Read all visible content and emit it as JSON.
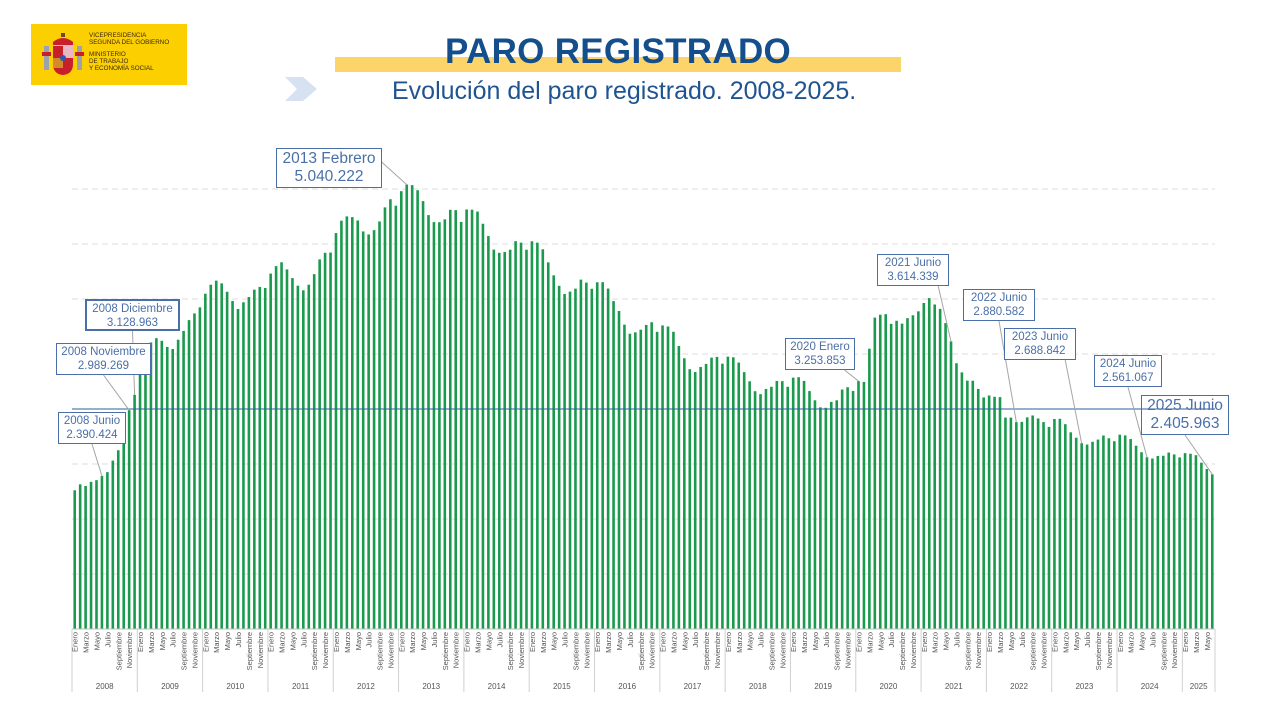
{
  "header": {
    "logo": {
      "lines_top": [
        "VICEPRESIDENCIA",
        "SEGUNDA DEL GOBIERNO"
      ],
      "lines_bottom": [
        "MINISTERIO",
        "DE TRABAJO",
        "Y ECONOMÍA SOCIAL"
      ],
      "background": "#fccf00"
    },
    "title": "PARO REGISTRADO",
    "subtitle": "Evolución del paro registrado. 2008-2025.",
    "title_color": "#144f8c",
    "highlight_color": "#fcd56a",
    "chevron_icon": "chevron-right-icon"
  },
  "chart_data": {
    "type": "bar",
    "title": "Evolución del paro registrado. 2008-2025.",
    "xlabel": "",
    "ylabel": "",
    "ylim": [
      1000000,
      5250000
    ],
    "grid": true,
    "gridline_step": 500000,
    "reference_line": 3000000,
    "bar_color": "#1a9a4c",
    "reference_color": "#2f5f9e",
    "years": [
      "2008",
      "2009",
      "2010",
      "2011",
      "2012",
      "2013",
      "2014",
      "2015",
      "2016",
      "2017",
      "2018",
      "2019",
      "2020",
      "2021",
      "2022",
      "2023",
      "2024",
      "2025"
    ],
    "month_tick_labels": [
      "Enero",
      "Marzo",
      "Mayo",
      "Julio",
      "Septiembre",
      "Noviembre"
    ],
    "month_tick_labels_2025": [
      "Enero",
      "Marzo",
      "Mayo"
    ],
    "values": [
      2261000,
      2315000,
      2300000,
      2338000,
      2353000,
      2390424,
      2426000,
      2531000,
      2625000,
      2818000,
      2989269,
      3128963,
      3327000,
      3482000,
      3605000,
      3644000,
      3620000,
      3564000,
      3545000,
      3630000,
      3710000,
      3808000,
      3869000,
      3924000,
      4048000,
      4130000,
      4167000,
      4142000,
      4066000,
      3982000,
      3909000,
      3970000,
      4018000,
      4085000,
      4110000,
      4100000,
      4231000,
      4299000,
      4334000,
      4269000,
      4190000,
      4121000,
      4079000,
      4130000,
      4226000,
      4360000,
      4420000,
      4422000,
      4599000,
      4712000,
      4751000,
      4744000,
      4714000,
      4614000,
      4587000,
      4626000,
      4705000,
      4833000,
      4907000,
      4848000,
      4980000,
      5040222,
      5035000,
      4989000,
      4890000,
      4763000,
      4699000,
      4698000,
      4724000,
      4811000,
      4808000,
      4701000,
      4814000,
      4812000,
      4795000,
      4684000,
      4572000,
      4449000,
      4420000,
      4427000,
      4448000,
      4526000,
      4512000,
      4448000,
      4525000,
      4512000,
      4452000,
      4333000,
      4215000,
      4120000,
      4046000,
      4067000,
      4094000,
      4176000,
      4149000,
      4093000,
      4152000,
      4153000,
      4095000,
      3981000,
      3891000,
      3767000,
      3684000,
      3697000,
      3721000,
      3764000,
      3789000,
      3702000,
      3760000,
      3750000,
      3702000,
      3573000,
      3461000,
      3362000,
      3336000,
      3382000,
      3410000,
      3467000,
      3474000,
      3412000,
      3476000,
      3470000,
      3422000,
      3335000,
      3252000,
      3162000,
      3135000,
      3182000,
      3202000,
      3255000,
      3253000,
      3202000,
      3285000,
      3289000,
      3255000,
      3163000,
      3079000,
      3015000,
      3011000,
      3065000,
      3079000,
      3177000,
      3198000,
      3164000,
      3253853,
      3246000,
      3548000,
      3831000,
      3857000,
      3862000,
      3774000,
      3802000,
      3776000,
      3826000,
      3852000,
      3888000,
      3964000,
      4008000,
      3950000,
      3910000,
      3781000,
      3614339,
      3416000,
      3333000,
      3258000,
      3257000,
      3182000,
      3105000,
      3123000,
      3111000,
      3108000,
      2922000,
      2922000,
      2880582,
      2883000,
      2924000,
      2941000,
      2914000,
      2881000,
      2837000,
      2909000,
      2911000,
      2862000,
      2788000,
      2739000,
      2688842,
      2677000,
      2702000,
      2722000,
      2759000,
      2734000,
      2707000,
      2767000,
      2760000,
      2727000,
      2666000,
      2607000,
      2561067,
      2550000,
      2573000,
      2575000,
      2604000,
      2587000,
      2560000,
      2599000,
      2593000,
      2580000,
      2512000,
      2454000,
      2405963
    ],
    "annotations": [
      {
        "label": "2008 Junio",
        "value": "2.390.424",
        "index": 5
      },
      {
        "label": "2008 Noviembre",
        "value": "2.989.269",
        "index": 10
      },
      {
        "label": "2008 Diciembre",
        "value": "3.128.963",
        "index": 11
      },
      {
        "label": "2013 Febrero",
        "value": "5.040.222",
        "index": 61
      },
      {
        "label": "2020 Enero",
        "value": "3.253.853",
        "index": 144
      },
      {
        "label": "2021 Junio",
        "value": "3.614.339",
        "index": 161
      },
      {
        "label": "2022 Junio",
        "value": "2.880.582",
        "index": 173
      },
      {
        "label": "2023 Junio",
        "value": "2.688.842",
        "index": 185
      },
      {
        "label": "2024 Junio",
        "value": "2.561.067",
        "index": 197
      },
      {
        "label": "2025 Junio",
        "value": "2.405.963",
        "index": 209
      }
    ]
  }
}
